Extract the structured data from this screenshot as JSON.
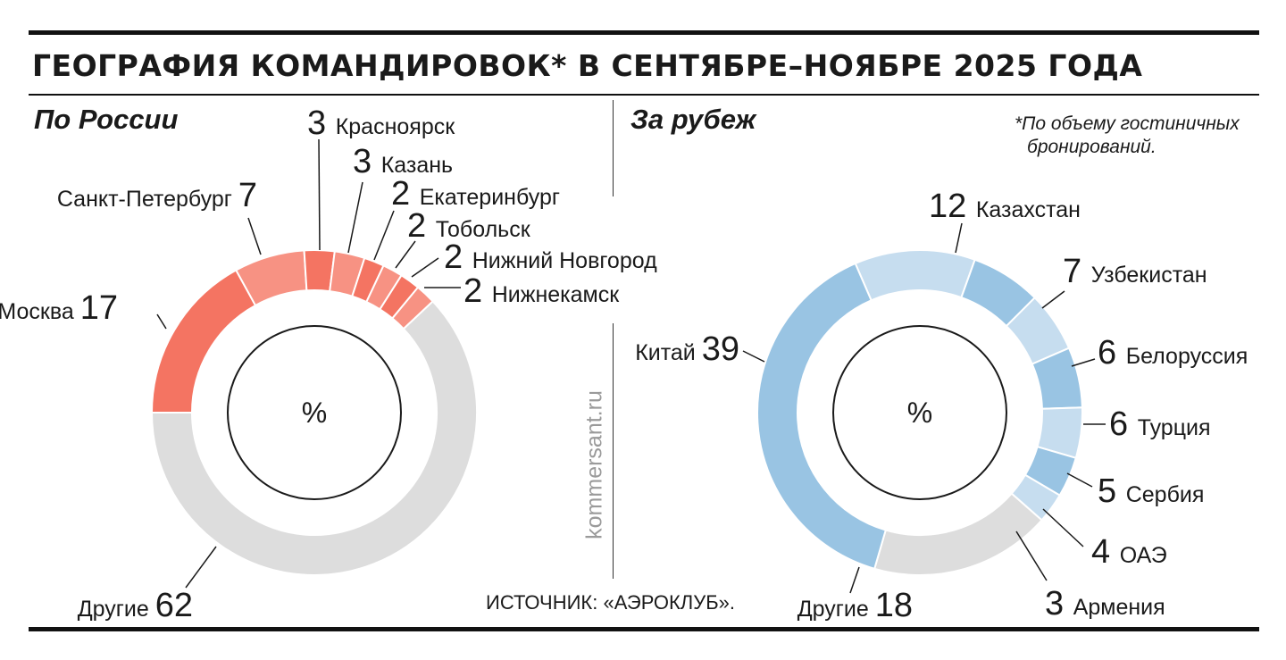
{
  "title": "ГЕОГРАФИЯ КОМАНДИРОВОК* В СЕНТЯБРЕ–НОЯБРЕ 2025 ГОДА",
  "footnote": [
    "*По объему гостиничных",
    "бронирований."
  ],
  "source": "ИСТОЧНИК: «АЭРОКЛУБ».",
  "watermark": "kommersant.ru",
  "chart_data": [
    {
      "type": "pie",
      "title": "По России",
      "center_label": "%",
      "categories": [
        "Москва",
        "Санкт-Петербург",
        "Красноярск",
        "Казань",
        "Екатеринбург",
        "Тобольск",
        "Нижний Новгород",
        "Нижнекамск",
        "Другие"
      ],
      "values": [
        17,
        7,
        3,
        3,
        2,
        2,
        2,
        2,
        62
      ],
      "colors": [
        "#f47462",
        "#f79283",
        "#f47462",
        "#f79283",
        "#f47462",
        "#f79283",
        "#f47462",
        "#f79283",
        "#dddddd"
      ]
    },
    {
      "type": "pie",
      "title": "За рубеж",
      "center_label": "%",
      "categories": [
        "Казахстан",
        "Узбекистан",
        "Белоруссия",
        "Турция",
        "Сербия",
        "ОАЭ",
        "Армения",
        "Другие",
        "Китай"
      ],
      "values": [
        12,
        7,
        6,
        6,
        5,
        4,
        3,
        18,
        39
      ],
      "colors": [
        "#c6ddef",
        "#99c4e3",
        "#c6ddef",
        "#99c4e3",
        "#c6ddef",
        "#99c4e3",
        "#c6ddef",
        "#dddddd",
        "#99c4e3"
      ]
    }
  ]
}
